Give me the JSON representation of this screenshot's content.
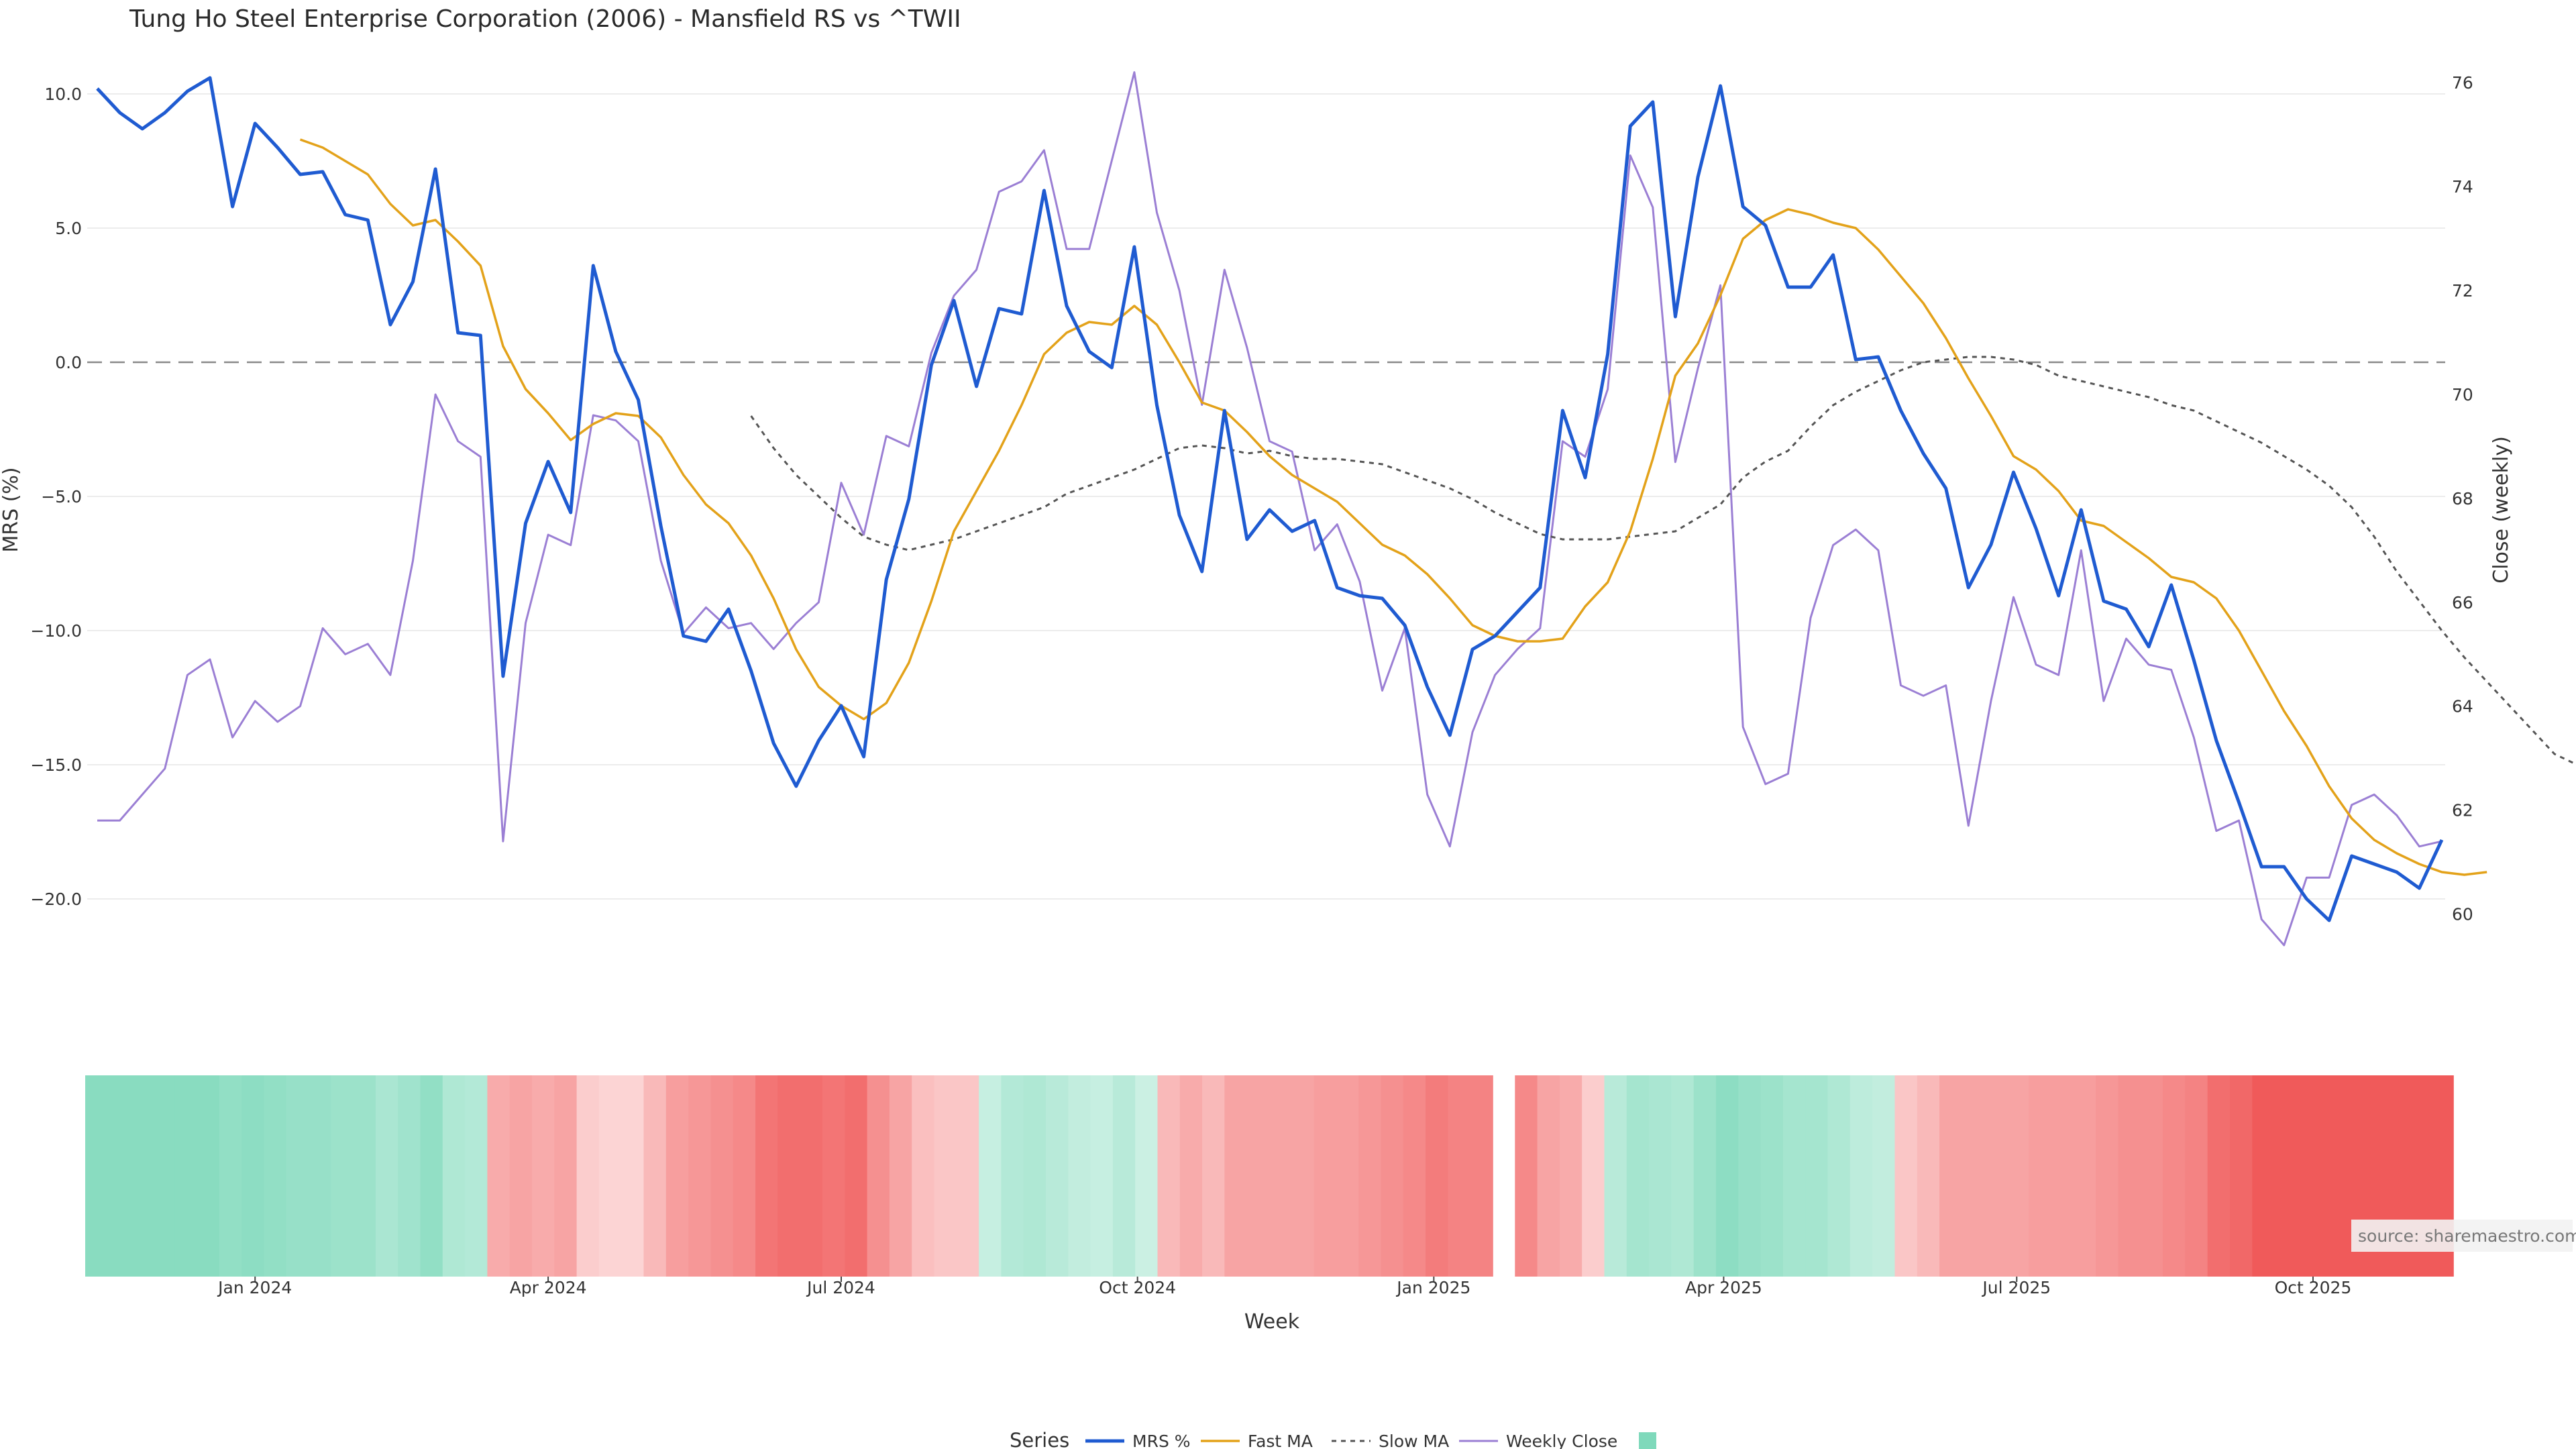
{
  "chart_data": {
    "type": "line",
    "title": "Tung Ho Steel Enterprise Corporation (2006) - Mansfield RS vs ^TWII",
    "xlabel": "Week",
    "ylabel": "MRS (%)",
    "y2label": "Close (weekly)",
    "ylim": [
      -22.5,
      11.0
    ],
    "y2lim": [
      59.0,
      76.3
    ],
    "yticks": [
      "10.0",
      "5.0",
      "0.0",
      "−5.0",
      "−10.0",
      "−15.0",
      "−20.0"
    ],
    "y2ticks": [
      "76",
      "74",
      "72",
      "70",
      "68",
      "66",
      "64",
      "62",
      "60"
    ],
    "xticks": [
      "Jan 2024",
      "Apr 2024",
      "Jul 2024",
      "Oct 2024",
      "Jan 2025",
      "Apr 2025",
      "Jul 2025",
      "Oct 2025"
    ],
    "x_start": "2023-11-13",
    "reference_line": 0,
    "grid": true,
    "legend": {
      "title": "Series",
      "position": "bottom",
      "entries": [
        "MRS %",
        "Fast MA",
        "Slow MA",
        "Weekly Close",
        ""
      ]
    },
    "source": "source: sharemaestro.com",
    "colors": {
      "mrs": "#1f5bd1",
      "fast": "#e3a21a",
      "slow": "#555555",
      "close": "#9b7fd4",
      "green": "#7fd9bb",
      "red": "#f05a5a"
    },
    "series": [
      {
        "name": "MRS %",
        "axis": "left",
        "values": [
          10.2,
          9.3,
          8.7,
          9.3,
          10.1,
          10.6,
          5.8,
          8.9,
          8.0,
          7.0,
          7.1,
          5.5,
          5.3,
          1.4,
          3.0,
          7.2,
          1.1,
          1.0,
          -11.7,
          -6.0,
          -3.7,
          -5.6,
          3.6,
          0.4,
          -1.4,
          -6.1,
          -10.2,
          -10.4,
          -9.2,
          -11.5,
          -14.2,
          -15.8,
          -14.1,
          -12.8,
          -14.7,
          -8.1,
          -5.1,
          -0.1,
          2.3,
          -0.9,
          2.0,
          1.8,
          6.4,
          2.1,
          0.4,
          -0.2,
          4.3,
          -1.6,
          -5.7,
          -7.8,
          -1.8,
          -6.6,
          -5.5,
          -6.3,
          -5.9,
          -8.4,
          -8.7,
          -8.8,
          -9.8,
          -12.1,
          -13.9,
          -10.7,
          -10.2,
          -9.3,
          -8.4,
          -1.8,
          -4.3,
          0.3,
          8.8,
          9.7,
          1.7,
          6.9,
          10.3,
          5.8,
          5.1,
          2.8,
          2.8,
          4.0,
          0.1,
          0.2,
          -1.8,
          -3.4,
          -4.7,
          -8.4,
          -6.8,
          -4.1,
          -6.2,
          -8.7,
          -5.5,
          -8.9,
          -9.2,
          -10.6,
          -8.3,
          -11.1,
          -14.1,
          -16.4,
          -18.8,
          -18.8,
          -20.0,
          -20.8,
          -18.4,
          -18.7,
          -19.0,
          -19.6,
          -17.8
        ]
      },
      {
        "name": "Fast MA",
        "axis": "left",
        "start": 9,
        "values": [
          8.3,
          8.0,
          7.5,
          7.0,
          5.9,
          5.1,
          5.3,
          4.5,
          3.6,
          0.6,
          -1.0,
          -1.9,
          -2.9,
          -2.3,
          -1.9,
          -2.0,
          -2.8,
          -4.2,
          -5.3,
          -6.0,
          -7.2,
          -8.8,
          -10.7,
          -12.1,
          -12.8,
          -13.3,
          -12.7,
          -11.2,
          -8.9,
          -6.3,
          -4.8,
          -3.3,
          -1.6,
          0.3,
          1.1,
          1.5,
          1.4,
          2.1,
          1.4,
          0.0,
          -1.5,
          -1.8,
          -2.6,
          -3.5,
          -4.2,
          -4.7,
          -5.2,
          -6.0,
          -6.8,
          -7.2,
          -7.9,
          -8.8,
          -9.8,
          -10.2,
          -10.4,
          -10.4,
          -10.3,
          -9.1,
          -8.2,
          -6.3,
          -3.6,
          -0.5,
          0.7,
          2.5,
          4.6,
          5.3,
          5.7,
          5.5,
          5.2,
          5.0,
          4.2,
          3.2,
          2.2,
          0.9,
          -0.6,
          -2.0,
          -3.5,
          -4.0,
          -4.8,
          -5.9,
          -6.1,
          -6.7,
          -7.3,
          -8.0,
          -8.2,
          -8.8,
          -10.0,
          -11.5,
          -13.0,
          -14.3,
          -15.8,
          -17.0,
          -17.8,
          -18.3,
          -18.7,
          -19.0,
          -19.1,
          -19.0
        ]
      },
      {
        "name": "Slow MA",
        "axis": "left",
        "start": 29,
        "values": [
          -2.0,
          -3.2,
          -4.2,
          -5.0,
          -5.8,
          -6.5,
          -6.8,
          -7.0,
          -6.8,
          -6.6,
          -6.3,
          -6.0,
          -5.7,
          -5.4,
          -4.9,
          -4.6,
          -4.3,
          -4.0,
          -3.6,
          -3.2,
          -3.1,
          -3.2,
          -3.4,
          -3.3,
          -3.5,
          -3.6,
          -3.6,
          -3.7,
          -3.8,
          -4.1,
          -4.4,
          -4.7,
          -5.1,
          -5.6,
          -6.0,
          -6.4,
          -6.6,
          -6.6,
          -6.6,
          -6.5,
          -6.4,
          -6.3,
          -5.8,
          -5.3,
          -4.3,
          -3.7,
          -3.3,
          -2.4,
          -1.6,
          -1.1,
          -0.7,
          -0.3,
          0.0,
          0.1,
          0.2,
          0.2,
          0.1,
          -0.1,
          -0.5,
          -0.7,
          -0.9,
          -1.1,
          -1.3,
          -1.6,
          -1.8,
          -2.2,
          -2.6,
          -3.0,
          -3.5,
          -4.0,
          -4.6,
          -5.4,
          -6.5,
          -7.8,
          -8.9,
          -10.0,
          -11.0,
          -11.9,
          -12.8,
          -13.7,
          -14.6,
          -15.0
        ]
      },
      {
        "name": "Weekly Close",
        "axis": "right",
        "values": [
          61.8,
          61.8,
          62.3,
          62.8,
          64.6,
          64.9,
          63.4,
          64.1,
          63.7,
          64.0,
          65.5,
          65.0,
          65.2,
          64.6,
          66.8,
          70.0,
          69.1,
          68.8,
          61.4,
          65.6,
          67.3,
          67.1,
          69.6,
          69.5,
          69.1,
          66.8,
          65.4,
          65.9,
          65.5,
          65.6,
          65.1,
          65.6,
          66.0,
          68.3,
          67.3,
          69.2,
          69.0,
          70.8,
          71.9,
          72.4,
          73.9,
          74.1,
          74.7,
          72.8,
          72.8,
          74.5,
          76.2,
          73.5,
          72.0,
          69.8,
          72.4,
          70.9,
          69.1,
          68.9,
          67.0,
          67.5,
          66.4,
          64.3,
          65.5,
          62.3,
          61.3,
          63.5,
          64.6,
          65.1,
          65.5,
          69.1,
          68.8,
          70.1,
          74.6,
          73.6,
          68.7,
          70.5,
          72.1,
          63.6,
          62.5,
          62.7,
          65.7,
          67.1,
          67.4,
          67.0,
          64.4,
          64.2,
          64.4,
          61.7,
          64.1,
          66.1,
          64.8,
          64.6,
          67.0,
          64.1,
          65.3,
          64.8,
          64.7,
          63.4,
          61.6,
          61.8,
          59.9,
          59.4,
          60.7,
          60.7,
          62.1,
          62.3,
          61.9,
          61.3,
          61.4
        ]
      }
    ],
    "heat_gap_index": 63,
    "heat_values": [
      0.9,
      0.9,
      0.9,
      0.9,
      0.9,
      0.9,
      0.8,
      0.85,
      0.8,
      0.75,
      0.75,
      0.7,
      0.7,
      0.55,
      0.65,
      0.8,
      0.5,
      0.45,
      -0.4,
      -0.45,
      -0.4,
      -0.45,
      -0.15,
      -0.1,
      -0.1,
      -0.3,
      -0.5,
      -0.55,
      -0.6,
      -0.65,
      -0.8,
      -0.85,
      -0.85,
      -0.8,
      -0.85,
      -0.6,
      -0.45,
      -0.25,
      -0.2,
      -0.2,
      0.25,
      0.45,
      0.5,
      0.4,
      0.3,
      0.25,
      0.4,
      0.2,
      -0.3,
      -0.4,
      -0.3,
      -0.45,
      -0.45,
      -0.45,
      -0.45,
      -0.5,
      -0.5,
      -0.55,
      -0.6,
      -0.65,
      -0.75,
      -0.7,
      -0.7,
      -0.65,
      -0.45,
      -0.4,
      -0.15,
      0.4,
      0.6,
      0.55,
      0.5,
      0.7,
      0.85,
      0.75,
      0.7,
      0.6,
      0.6,
      0.5,
      0.35,
      0.3,
      -0.2,
      -0.3,
      -0.45,
      -0.45,
      -0.45,
      -0.45,
      -0.5,
      -0.5,
      -0.5,
      -0.55,
      -0.6,
      -0.6,
      -0.65,
      -0.7,
      -0.85,
      -0.9,
      -1.0,
      -1.0,
      -1.0,
      -1.0,
      -1.0,
      -1.0,
      -1.0,
      -1.0,
      -1.0
    ]
  }
}
